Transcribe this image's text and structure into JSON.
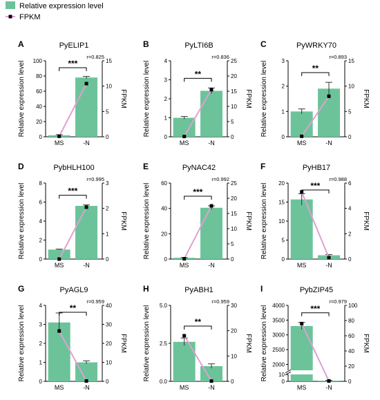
{
  "legend": {
    "bar_label": "Relative expression level",
    "line_label": "FPKM",
    "bar_color": "#6cc39a",
    "line_color": "#e0a0d0"
  },
  "chart_data": [
    {
      "type": "bar",
      "panel_label": "A",
      "title": "PyELIP1",
      "categories": [
        "MS",
        "-N"
      ],
      "series": [
        {
          "name": "Relative expression level",
          "axis": "left",
          "values": [
            2,
            78
          ],
          "errors": [
            0.8,
            1.5
          ]
        },
        {
          "name": "FPKM",
          "axis": "right",
          "type": "line",
          "values": [
            0.1,
            10.5
          ]
        }
      ],
      "correlation": "r=0.825",
      "significance": "***",
      "ylabel": "Relative expression level",
      "y2label": "FPKM",
      "ylim": [
        0,
        100
      ],
      "yticks": [
        0,
        20,
        40,
        60,
        80,
        100
      ],
      "y2lim": [
        0,
        15
      ],
      "y2ticks": [
        0,
        5,
        10,
        15
      ]
    },
    {
      "type": "bar",
      "panel_label": "B",
      "title": "PyLTI6B",
      "categories": [
        "MS",
        "-N"
      ],
      "series": [
        {
          "name": "Relative expression level",
          "axis": "left",
          "values": [
            1.0,
            2.42
          ],
          "errors": [
            0.07,
            0.15
          ]
        },
        {
          "name": "FPKM",
          "axis": "right",
          "type": "line",
          "values": [
            0.1,
            15.5
          ]
        }
      ],
      "correlation": "r=0.836",
      "significance": "**",
      "ylabel": "Relative expression level",
      "y2label": "FPKM",
      "ylim": [
        0,
        4
      ],
      "yticks": [
        0,
        1,
        2,
        3,
        4
      ],
      "y2lim": [
        0,
        25
      ],
      "y2ticks": [
        0,
        5,
        10,
        15,
        20,
        25
      ]
    },
    {
      "type": "bar",
      "panel_label": "C",
      "title": "PyWRKY70",
      "categories": [
        "MS",
        "-N"
      ],
      "series": [
        {
          "name": "Relative expression level",
          "axis": "left",
          "values": [
            1.0,
            1.9
          ],
          "errors": [
            0.1,
            0.25
          ]
        },
        {
          "name": "FPKM",
          "axis": "right",
          "type": "line",
          "values": [
            0.1,
            8.0
          ]
        }
      ],
      "correlation": "r=0.893",
      "significance": "**",
      "ylabel": "Relative expression level",
      "y2label": "FPKM",
      "ylim": [
        0,
        3
      ],
      "yticks": [
        0,
        1,
        2,
        3
      ],
      "y2lim": [
        0,
        15
      ],
      "y2ticks": [
        0,
        5,
        10,
        15
      ]
    },
    {
      "type": "bar",
      "panel_label": "D",
      "title": "PybHLH100",
      "categories": [
        "MS",
        "-N"
      ],
      "series": [
        {
          "name": "Relative expression level",
          "axis": "left",
          "values": [
            1.0,
            5.6
          ],
          "errors": [
            0.05,
            0.1
          ]
        },
        {
          "name": "FPKM",
          "axis": "right",
          "type": "line",
          "values": [
            0.0,
            2.05
          ]
        }
      ],
      "correlation": "r=0.995",
      "significance": "***",
      "ylabel": "Relative expression level",
      "y2label": "FPKM",
      "ylim": [
        0,
        8
      ],
      "yticks": [
        0,
        2,
        4,
        6,
        8
      ],
      "y2lim": [
        0,
        3
      ],
      "y2ticks": [
        0,
        1,
        2,
        3
      ]
    },
    {
      "type": "bar",
      "panel_label": "E",
      "title": "PyNAC42",
      "categories": [
        "MS",
        "-N"
      ],
      "series": [
        {
          "name": "Relative expression level",
          "axis": "left",
          "values": [
            1.0,
            40.5
          ],
          "errors": [
            0.2,
            1.5
          ]
        },
        {
          "name": "FPKM",
          "axis": "right",
          "type": "line",
          "values": [
            0.1,
            17.5
          ]
        }
      ],
      "correlation": "r=0.992",
      "significance": "***",
      "ylabel": "Relative expression level",
      "y2label": "FPKM",
      "ylim": [
        0,
        60
      ],
      "yticks": [
        0,
        20,
        40,
        60
      ],
      "y2lim": [
        0,
        25
      ],
      "y2ticks": [
        0,
        5,
        10,
        15,
        20,
        25
      ]
    },
    {
      "type": "bar",
      "panel_label": "F",
      "title": "PyHB17",
      "categories": [
        "MS",
        "-N"
      ],
      "series": [
        {
          "name": "Relative expression level",
          "axis": "left",
          "values": [
            15.7,
            1.0
          ],
          "errors": [
            1.5,
            0.2
          ]
        },
        {
          "name": "FPKM",
          "axis": "right",
          "type": "line",
          "values": [
            5.3,
            0.1
          ]
        }
      ],
      "correlation": "r=0.988",
      "significance": "***",
      "ylabel": "Relative expression level",
      "y2label": "FPKM",
      "ylim": [
        0,
        20
      ],
      "yticks": [
        0,
        5,
        10,
        15,
        20
      ],
      "y2lim": [
        0,
        6
      ],
      "y2ticks": [
        0,
        2,
        4,
        6
      ]
    },
    {
      "type": "bar",
      "panel_label": "G",
      "title": "PyAGL9",
      "categories": [
        "MS",
        "-N"
      ],
      "series": [
        {
          "name": "Relative expression level",
          "axis": "left",
          "values": [
            3.1,
            1.0
          ],
          "errors": [
            0.5,
            0.08
          ]
        },
        {
          "name": "FPKM",
          "axis": "right",
          "type": "line",
          "values": [
            26.5,
            0.2
          ]
        }
      ],
      "correlation": "r=0.959",
      "significance": "**",
      "ylabel": "Relative expression level",
      "y2label": "FPKM",
      "ylim": [
        0,
        4
      ],
      "yticks": [
        0,
        1,
        2,
        3,
        4
      ],
      "y2lim": [
        0,
        40
      ],
      "y2ticks": [
        0,
        10,
        20,
        30,
        40
      ]
    },
    {
      "type": "bar",
      "panel_label": "H",
      "title": "PyABH1",
      "categories": [
        "MS",
        "-N"
      ],
      "series": [
        {
          "name": "Relative expression level",
          "axis": "left",
          "values": [
            2.6,
            1.0
          ],
          "errors": [
            0.25,
            0.15
          ]
        },
        {
          "name": "FPKM",
          "axis": "right",
          "type": "line",
          "values": [
            18.0,
            0.1
          ]
        }
      ],
      "correlation": "r=0.959",
      "significance": "**",
      "ylabel": "Relative expression level",
      "y2label": "FPKM",
      "ylim": [
        0,
        5
      ],
      "yticks": [
        0,
        2.5,
        5
      ],
      "y2lim": [
        0,
        30
      ],
      "y2ticks": [
        0,
        10,
        20,
        30
      ],
      "ytick_labels": [
        "0.0",
        "2.5",
        "5.0"
      ]
    },
    {
      "type": "bar",
      "panel_label": "I",
      "title": "PybZIP45",
      "categories": [
        "MS",
        "-N"
      ],
      "series": [
        {
          "name": "Relative expression level",
          "axis": "left",
          "values": [
            3300,
            1.0
          ],
          "errors": [
            120,
            0.5
          ]
        },
        {
          "name": "FPKM",
          "axis": "right",
          "type": "line",
          "values": [
            76,
            0.5
          ]
        }
      ],
      "correlation": "r=0.979",
      "significance": "***",
      "ylabel": "Relative expression level",
      "y2label": "FPKM",
      "broken_axis": true,
      "ylim_lower": [
        0,
        10
      ],
      "yticks_lower": [
        0,
        10
      ],
      "ylim_upper": [
        1800,
        4000
      ],
      "yticks_upper": [
        2000,
        2500,
        3000,
        3500,
        4000
      ],
      "y2lim": [
        0,
        100
      ],
      "y2ticks": [
        0,
        20,
        40,
        60,
        80,
        100
      ]
    }
  ]
}
